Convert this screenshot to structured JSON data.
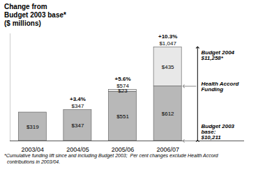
{
  "chart_data": {
    "type": "bar",
    "stacked": true,
    "title": [
      "Change from",
      "Budget 2003 base*",
      "($ millions)"
    ],
    "categories": [
      "2003/04",
      "2004/05",
      "2005/06",
      "2006/07"
    ],
    "series": [
      {
        "color": "#b8b8b8",
        "values": [
          319,
          347,
          551,
          612
        ],
        "value_labels": [
          "$319",
          "$347",
          "$551",
          "$612"
        ]
      },
      {
        "color": "#e8e8e8",
        "values": [
          0,
          0,
          23,
          435
        ],
        "value_labels": [
          null,
          null,
          "$23",
          "$435"
        ]
      }
    ],
    "data_labels": true,
    "totals": [
      null,
      347,
      574,
      1047
    ],
    "total_labels": [
      null,
      "$347",
      "$574",
      "$1,047"
    ],
    "pct_labels": [
      null,
      "+3.4%",
      "+5.6%",
      "+10.3%"
    ],
    "annotations": [
      {
        "text": "Budget 2004\n$11,258*",
        "y_from": 0,
        "y_to": 1047
      },
      {
        "text": "Health Accord\nFunding",
        "y": 612
      },
      {
        "text": "Budget 2003\nbase:\n$10,211",
        "y": 0
      }
    ],
    "footnote": "*Cumulative funding lift since and including Budget 2003;  Per cent changes exclude Health Accord\n  contributions in 2003/04.",
    "ylim": [
      0,
      1200
    ],
    "yticks": [],
    "tick_labels": "x",
    "grid": false
  }
}
